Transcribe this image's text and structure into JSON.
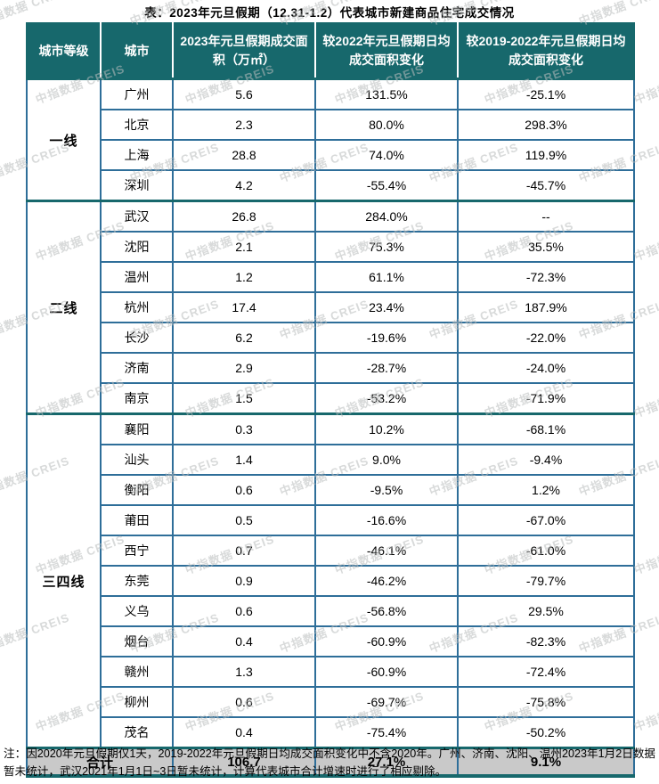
{
  "title": "表：2023年元旦假期（12.31-1.2）代表城市新建商品住宅成交情况",
  "watermark": {
    "text": "中指数据 CREIS"
  },
  "colors": {
    "header_bg": "#17686c",
    "row_border": "#2e6e99",
    "group_border": "#17686c",
    "footer_bg": "#c9c9c9",
    "header_text": "#ffffff"
  },
  "table": {
    "headers": [
      "城市等级",
      "城市",
      "2023年元旦假期成交面积（万㎡）",
      "较2022年元旦假期日均成交面积变化",
      "较2019-2022年元旦假期日均成交面积变化"
    ],
    "groups": [
      {
        "tier": "一线",
        "rows": [
          [
            "广州",
            "5.6",
            "131.5%",
            "-25.1%"
          ],
          [
            "北京",
            "2.3",
            "80.0%",
            "298.3%"
          ],
          [
            "上海",
            "28.8",
            "74.0%",
            "119.9%"
          ],
          [
            "深圳",
            "4.2",
            "-55.4%",
            "-45.7%"
          ]
        ]
      },
      {
        "tier": "二线",
        "rows": [
          [
            "武汉",
            "26.8",
            "284.0%",
            "--"
          ],
          [
            "沈阳",
            "2.1",
            "75.3%",
            "35.5%"
          ],
          [
            "温州",
            "1.2",
            "61.1%",
            "-72.3%"
          ],
          [
            "杭州",
            "17.4",
            "23.4%",
            "187.9%"
          ],
          [
            "长沙",
            "6.2",
            "-19.6%",
            "-22.0%"
          ],
          [
            "济南",
            "2.9",
            "-28.7%",
            "-24.0%"
          ],
          [
            "南京",
            "1.5",
            "-53.2%",
            "-71.9%"
          ]
        ]
      },
      {
        "tier": "三四线",
        "rows": [
          [
            "襄阳",
            "0.3",
            "10.2%",
            "-68.1%"
          ],
          [
            "汕头",
            "1.4",
            "9.0%",
            "-9.4%"
          ],
          [
            "衡阳",
            "0.6",
            "-9.5%",
            "1.2%"
          ],
          [
            "莆田",
            "0.5",
            "-16.6%",
            "-67.0%"
          ],
          [
            "西宁",
            "0.7",
            "-46.1%",
            "-61.0%"
          ],
          [
            "东莞",
            "0.9",
            "-46.2%",
            "-79.7%"
          ],
          [
            "义乌",
            "0.6",
            "-56.8%",
            "29.5%"
          ],
          [
            "烟台",
            "0.4",
            "-60.9%",
            "-82.3%"
          ],
          [
            "赣州",
            "1.3",
            "-60.9%",
            "-72.4%"
          ],
          [
            "柳州",
            "0.6",
            "-69.7%",
            "-75.8%"
          ],
          [
            "茂名",
            "0.4",
            "-75.4%",
            "-50.2%"
          ]
        ]
      }
    ],
    "footer": {
      "label": "合计",
      "area": "106.7",
      "vs2022": "27.1%",
      "vs2019_2022": "9.1%"
    }
  },
  "note": "注：因2020年元旦假期仅1天，2019-2022年元旦假期日均成交面积变化中不含2020年。广州、济南、沈阳、温州2023年1月2日数据暂未统计，武汉2021年1月1日~3日暂未统计，计算代表城市合计增速时进行了相应剔除。",
  "chart_data": {
    "type": "table",
    "title": "表：2023年元旦假期（12.31-1.2）代表城市新建商品住宅成交情况",
    "columns": [
      "城市等级",
      "城市",
      "2023年元旦假期成交面积（万㎡）",
      "较2022年元旦假期日均成交面积变化",
      "较2019-2022年元旦假期日均成交面积变化"
    ],
    "rows": [
      [
        "一线",
        "广州",
        5.6,
        "131.5%",
        "-25.1%"
      ],
      [
        "一线",
        "北京",
        2.3,
        "80.0%",
        "298.3%"
      ],
      [
        "一线",
        "上海",
        28.8,
        "74.0%",
        "119.9%"
      ],
      [
        "一线",
        "深圳",
        4.2,
        "-55.4%",
        "-45.7%"
      ],
      [
        "二线",
        "武汉",
        26.8,
        "284.0%",
        "--"
      ],
      [
        "二线",
        "沈阳",
        2.1,
        "75.3%",
        "35.5%"
      ],
      [
        "二线",
        "温州",
        1.2,
        "61.1%",
        "-72.3%"
      ],
      [
        "二线",
        "杭州",
        17.4,
        "23.4%",
        "187.9%"
      ],
      [
        "二线",
        "长沙",
        6.2,
        "-19.6%",
        "-22.0%"
      ],
      [
        "二线",
        "济南",
        2.9,
        "-28.7%",
        "-24.0%"
      ],
      [
        "二线",
        "南京",
        1.5,
        "-53.2%",
        "-71.9%"
      ],
      [
        "三四线",
        "襄阳",
        0.3,
        "10.2%",
        "-68.1%"
      ],
      [
        "三四线",
        "汕头",
        1.4,
        "9.0%",
        "-9.4%"
      ],
      [
        "三四线",
        "衡阳",
        0.6,
        "-9.5%",
        "1.2%"
      ],
      [
        "三四线",
        "莆田",
        0.5,
        "-16.6%",
        "-67.0%"
      ],
      [
        "三四线",
        "西宁",
        0.7,
        "-46.1%",
        "-61.0%"
      ],
      [
        "三四线",
        "东莞",
        0.9,
        "-46.2%",
        "-79.7%"
      ],
      [
        "三四线",
        "义乌",
        0.6,
        "-56.8%",
        "29.5%"
      ],
      [
        "三四线",
        "烟台",
        0.4,
        "-60.9%",
        "-82.3%"
      ],
      [
        "三四线",
        "赣州",
        1.3,
        "-60.9%",
        "-72.4%"
      ],
      [
        "三四线",
        "柳州",
        0.6,
        "-69.7%",
        "-75.8%"
      ],
      [
        "三四线",
        "茂名",
        0.4,
        "-75.4%",
        "-50.2%"
      ]
    ],
    "footer_row": [
      "合计",
      "",
      106.7,
      "27.1%",
      "9.1%"
    ],
    "note": "注：因2020年元旦假期仅1天，2019-2022年元旦假期日均成交面积变化中不含2020年。广州、济南、沈阳、温州2023年1月2日数据暂未统计，武汉2021年1月1日~3日暂未统计，计算代表城市合计增速时进行了相应剔除。"
  }
}
